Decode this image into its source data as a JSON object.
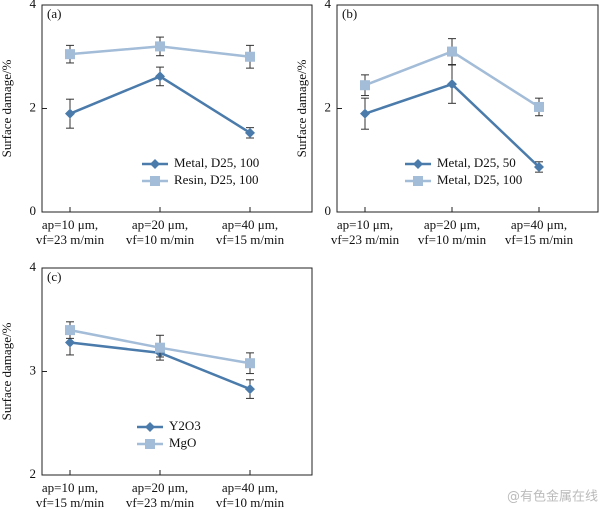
{
  "chart_data": [
    {
      "type": "line",
      "panel_label": "(a)",
      "ylabel": "Surface damage/%",
      "categories": [
        [
          "ap=10 μm,",
          "vf=23 m/min"
        ],
        [
          "ap=20 μm,",
          "vf=10 m/min"
        ],
        [
          "ap=40 μm,",
          "vf=15 m/min"
        ]
      ],
      "ylim": [
        0,
        4
      ],
      "yticks": [
        0,
        2,
        4
      ],
      "legend": "lower right",
      "series": [
        {
          "name": "Metal, D25, 100",
          "color": "#4a7bab",
          "marker": "diamond",
          "values": [
            1.9,
            2.62,
            1.53
          ],
          "errors": [
            0.28,
            0.18,
            0.1
          ]
        },
        {
          "name": "Resin, D25, 100",
          "color": "#a3bcd8",
          "marker": "square",
          "values": [
            3.05,
            3.2,
            3.0
          ],
          "errors": [
            0.17,
            0.18,
            0.22
          ]
        }
      ]
    },
    {
      "type": "line",
      "panel_label": "(b)",
      "ylabel": "Surface damage/%",
      "categories": [
        [
          "ap=10 μm,",
          "vf=23 m/min"
        ],
        [
          "ap=20 μm,",
          "vf=10 m/min"
        ],
        [
          "ap=40 μm,",
          "vf=15 m/min"
        ]
      ],
      "ylim": [
        0,
        4
      ],
      "yticks": [
        0,
        2,
        4
      ],
      "legend": "lower left",
      "series": [
        {
          "name": "Metal, D25, 50",
          "color": "#4a7bab",
          "marker": "diamond",
          "values": [
            1.9,
            2.47,
            0.87
          ],
          "errors": [
            0.3,
            0.37,
            0.1
          ]
        },
        {
          "name": "Metal, D25, 100",
          "color": "#a3bcd8",
          "marker": "square",
          "values": [
            2.45,
            3.1,
            2.03
          ],
          "errors": [
            0.2,
            0.25,
            0.17
          ]
        }
      ]
    },
    {
      "type": "line",
      "panel_label": "(c)",
      "ylabel": "Surface damage/%",
      "categories": [
        [
          "ap=10 μm,",
          "vf=15 m/min"
        ],
        [
          "ap=20 μm,",
          "vf=23 m/min"
        ],
        [
          "ap=40 μm,",
          "vf=10 m/min"
        ]
      ],
      "ylim": [
        2,
        4
      ],
      "yticks": [
        2,
        3,
        4
      ],
      "legend": "lower center",
      "series": [
        {
          "name": "Y2O3",
          "color": "#4a7bab",
          "marker": "diamond",
          "values": [
            3.28,
            3.18,
            2.83
          ],
          "errors": [
            0.12,
            0.04,
            0.09
          ]
        },
        {
          "name": "MgO",
          "color": "#a3bcd8",
          "marker": "square",
          "values": [
            3.4,
            3.23,
            3.08
          ],
          "errors": [
            0.08,
            0.12,
            0.1
          ]
        }
      ]
    }
  ],
  "watermark": "@有色金属在线"
}
